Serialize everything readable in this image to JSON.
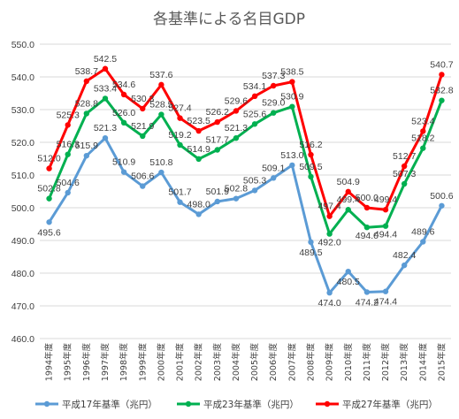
{
  "chart_data": {
    "type": "line",
    "title": "各基準による名目GDP",
    "categories": [
      "1994年度",
      "1995年度",
      "1996年度",
      "1997年度",
      "1998年度",
      "1999年度",
      "2000年度",
      "2001年度",
      "2002年度",
      "2003年度",
      "2004年度",
      "2005年度",
      "2006年度",
      "2007年度",
      "2008年度",
      "2009年度",
      "2010年度",
      "2011年度",
      "2012年度",
      "2013年度",
      "2014年度",
      "2015年度"
    ],
    "ylim": [
      460,
      550
    ],
    "yticks": [
      "460.0",
      "470.0",
      "480.0",
      "490.0",
      "500.0",
      "510.0",
      "520.0",
      "530.0",
      "540.0",
      "550.0"
    ],
    "grid": true,
    "legend": "bottom",
    "series": [
      {
        "name": "平成17年基準（兆円）",
        "color": "#5b9bd5",
        "values": [
          495.6,
          504.6,
          515.9,
          521.3,
          510.9,
          506.6,
          510.8,
          501.7,
          498.0,
          501.9,
          502.8,
          505.3,
          509.1,
          513.0,
          489.5,
          474.0,
          480.5,
          474.2,
          474.4,
          482.4,
          489.6,
          500.6
        ],
        "labels": [
          "495.6",
          "504.6",
          "515.9",
          "521.3",
          "510.9",
          "506.6",
          "510.8",
          "501.7",
          "498.0",
          "501.9",
          "502.8",
          "505.3",
          "509.1",
          "513.0",
          "489.5",
          "474.0",
          "480.5",
          "474.2",
          "474.4",
          "482.4",
          "489.6",
          "500.6"
        ],
        "label_shown": [
          true,
          true,
          true,
          true,
          true,
          true,
          true,
          true,
          true,
          true,
          true,
          true,
          true,
          true,
          true,
          true,
          true,
          true,
          true,
          true,
          true,
          true
        ]
      },
      {
        "name": "平成23年基準（兆円）",
        "color": "#00b050",
        "values": [
          502.8,
          516.3,
          528.8,
          533.4,
          526.0,
          521.9,
          528.5,
          519.2,
          514.9,
          517.7,
          521.3,
          525.6,
          529.0,
          530.9,
          509.5,
          492.0,
          499.4,
          494.0,
          494.4,
          507.3,
          518.2,
          532.8
        ],
        "labels": [
          "502.8",
          "516.3",
          "528.8",
          "533.4",
          "526.0",
          "521.9",
          "528.5",
          "519.2",
          "514.9",
          "517.7",
          "521.3",
          "525.6",
          "529.0",
          "530.9",
          "509.5",
          "492.0",
          "499.4",
          "494.0",
          "494.4",
          "507.3",
          "518.2",
          "532.8"
        ],
        "label_shown": [
          true,
          true,
          true,
          true,
          true,
          true,
          true,
          true,
          true,
          true,
          true,
          true,
          true,
          true,
          true,
          true,
          true,
          true,
          true,
          true,
          true,
          true
        ]
      },
      {
        "name": "平成27年基準（兆円）",
        "color": "#ff0000",
        "values": [
          512.0,
          525.3,
          538.7,
          542.5,
          534.6,
          530.3,
          537.6,
          527.4,
          523.5,
          526.2,
          529.6,
          534.1,
          537.3,
          538.5,
          516.2,
          497.4,
          504.9,
          500.0,
          499.4,
          512.7,
          523.4,
          540.7
        ],
        "labels": [
          "512.0",
          "525.3",
          "538.7",
          "542.5",
          "534.6",
          "530.3",
          "537.6",
          "527.4",
          "523.5",
          "526.2",
          "529.6",
          "534.1",
          "537.3",
          "538.5",
          "516.2",
          "497.4",
          "504.9",
          "500.0",
          "499.4",
          "512.7",
          "523.4",
          "540.7"
        ],
        "label_shown": [
          true,
          true,
          true,
          true,
          true,
          true,
          true,
          true,
          true,
          true,
          true,
          true,
          true,
          true,
          true,
          true,
          true,
          true,
          true,
          true,
          true,
          true
        ]
      }
    ]
  }
}
